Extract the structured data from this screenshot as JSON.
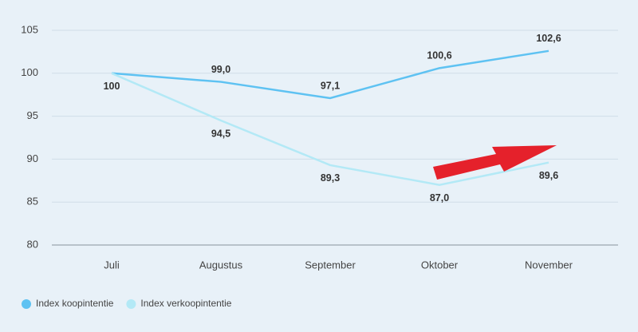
{
  "chart_data": {
    "type": "line",
    "categories": [
      "Juli",
      "Augustus",
      "September",
      "Oktober",
      "November"
    ],
    "series": [
      {
        "name": "Index koopintentie",
        "color": "#5ec2f2",
        "values": [
          100,
          99.0,
          97.1,
          100.6,
          102.6
        ],
        "value_labels": [
          null,
          "99,0",
          "97,1",
          "100,6",
          "102,6"
        ]
      },
      {
        "name": "Index verkoopintentie",
        "color": "#b3e9f6",
        "values": [
          100,
          94.5,
          89.3,
          87.0,
          89.6
        ],
        "value_labels": [
          "100",
          "94,5",
          "89,3",
          "87,0",
          "89,6"
        ]
      }
    ],
    "ylim": [
      80,
      105
    ],
    "yticks": [
      80,
      85,
      90,
      95,
      100,
      105
    ],
    "grid": true
  }
}
